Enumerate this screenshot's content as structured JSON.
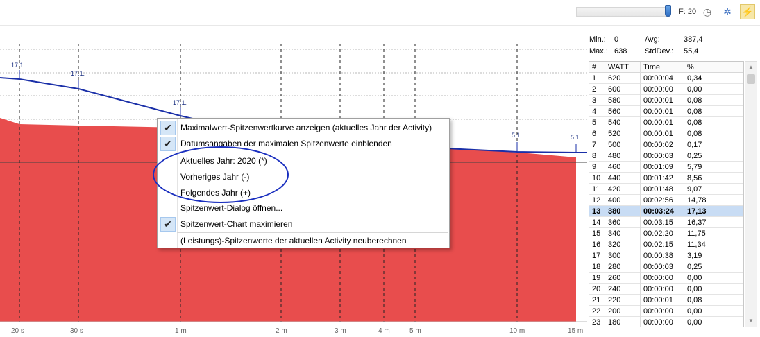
{
  "toolbar": {
    "filter_label": "F: 20",
    "icons": [
      "clock-icon",
      "gear-icon",
      "flash-icon"
    ]
  },
  "chart_data": {
    "type": "area",
    "x_tick_labels": [
      "20 s",
      "30 s",
      "1 m",
      "2 m",
      "3 m",
      "4 m",
      "5 m",
      "10 m",
      "15 m"
    ],
    "peak_curve_date_labels": [
      "17.1.",
      "17.1.",
      "17.1.",
      "5.1.",
      "5.1."
    ],
    "fill_color": "#e84d4d",
    "curve_color": "#1a2fa8",
    "grid": true
  },
  "stats": {
    "min_label": "Min.:",
    "min_value": "0",
    "max_label": "Max.:",
    "max_value": "638",
    "avg_label": "Avg:",
    "avg_value": "387,4",
    "stddev_label": "StdDev.:",
    "stddev_value": "55,4"
  },
  "table": {
    "headers": [
      "#",
      "WATT",
      "Time",
      "%"
    ],
    "selected_index": 12,
    "rows": [
      [
        "1",
        "620",
        "00:00:04",
        "0,34"
      ],
      [
        "2",
        "600",
        "00:00:00",
        "0,00"
      ],
      [
        "3",
        "580",
        "00:00:01",
        "0,08"
      ],
      [
        "4",
        "560",
        "00:00:01",
        "0,08"
      ],
      [
        "5",
        "540",
        "00:00:01",
        "0,08"
      ],
      [
        "6",
        "520",
        "00:00:01",
        "0,08"
      ],
      [
        "7",
        "500",
        "00:00:02",
        "0,17"
      ],
      [
        "8",
        "480",
        "00:00:03",
        "0,25"
      ],
      [
        "9",
        "460",
        "00:01:09",
        "5,79"
      ],
      [
        "10",
        "440",
        "00:01:42",
        "8,56"
      ],
      [
        "11",
        "420",
        "00:01:48",
        "9,07"
      ],
      [
        "12",
        "400",
        "00:02:56",
        "14,78"
      ],
      [
        "13",
        "380",
        "00:03:24",
        "17,13"
      ],
      [
        "14",
        "360",
        "00:03:15",
        "16,37"
      ],
      [
        "15",
        "340",
        "00:02:20",
        "11,75"
      ],
      [
        "16",
        "320",
        "00:02:15",
        "11,34"
      ],
      [
        "17",
        "300",
        "00:00:38",
        "3,19"
      ],
      [
        "18",
        "280",
        "00:00:03",
        "0,25"
      ],
      [
        "19",
        "260",
        "00:00:00",
        "0,00"
      ],
      [
        "20",
        "240",
        "00:00:00",
        "0,00"
      ],
      [
        "21",
        "220",
        "00:00:01",
        "0,08"
      ],
      [
        "22",
        "200",
        "00:00:00",
        "0,00"
      ],
      [
        "23",
        "180",
        "00:00:00",
        "0,00"
      ]
    ]
  },
  "menu": {
    "items": [
      {
        "label": "Maximalwert-Spitzenwertkurve anzeigen (aktuelles Jahr der Activity)",
        "checked": true
      },
      {
        "label": "Datumsangaben der maximalen Spitzenwerte einblenden",
        "checked": true
      },
      {
        "label": "Aktuelles Jahr: 2020 (*)",
        "checked": false
      },
      {
        "label": "Vorheriges Jahr (-)",
        "checked": false
      },
      {
        "label": "Folgendes Jahr (+)",
        "checked": false
      },
      {
        "label": "Spitzenwert-Dialog öffnen...",
        "checked": false
      },
      {
        "label": "Spitzenwert-Chart maximieren",
        "checked": true
      },
      {
        "label": "(Leistungs)-Spitzenwerte der aktuellen Activity neuberechnen",
        "checked": false
      }
    ]
  }
}
